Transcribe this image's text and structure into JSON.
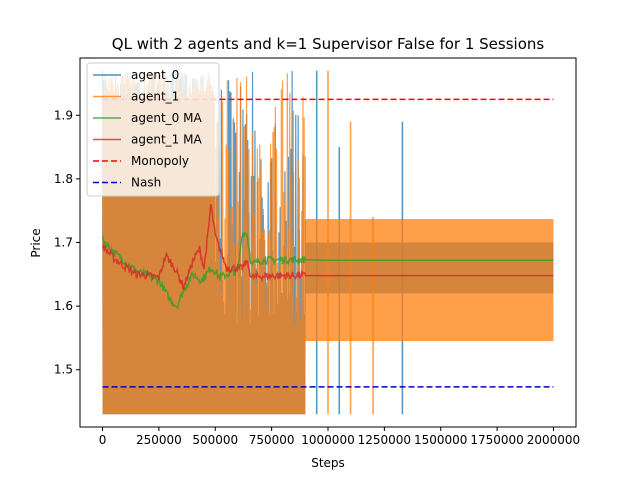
{
  "chart_data": {
    "type": "line",
    "title": "QL with 2 agents and k=1 Supervisor False for 1 Sessions",
    "xlabel": "Steps",
    "ylabel": "Price",
    "xlim": [
      -100000,
      2100000
    ],
    "ylim": [
      1.41,
      1.99
    ],
    "x_ticks": [
      0,
      250000,
      500000,
      750000,
      1000000,
      1250000,
      1500000,
      1750000,
      2000000
    ],
    "x_tick_labels": [
      "0",
      "250000",
      "500000",
      "750000",
      "1000000",
      "1250000",
      "1500000",
      "1750000",
      "2000000"
    ],
    "y_ticks": [
      1.5,
      1.6,
      1.7,
      1.8,
      1.9
    ],
    "y_tick_labels": [
      "1.5",
      "1.6",
      "1.7",
      "1.8",
      "1.9"
    ],
    "legend_position": "top-left",
    "grid": false,
    "series": [
      {
        "name": "agent_0",
        "color": "#1f77b4",
        "style": "raw",
        "early_band": {
          "x": [
            0,
            900000
          ],
          "y": [
            1.43,
            1.97
          ]
        },
        "late_band": {
          "x": [
            900000,
            2000000
          ],
          "y": [
            1.62,
            1.7
          ]
        },
        "spikes": [
          {
            "x": 950000,
            "y": [
              1.43,
              1.97
            ]
          },
          {
            "x": 1050000,
            "y": [
              1.43,
              1.85
            ]
          },
          {
            "x": 1330000,
            "y": [
              1.43,
              1.89
            ]
          }
        ]
      },
      {
        "name": "agent_1",
        "color": "#ff7f0e",
        "style": "raw",
        "early_band": {
          "x": [
            0,
            900000
          ],
          "y": [
            1.43,
            1.97
          ]
        },
        "late_band": {
          "x": [
            900000,
            2000000
          ],
          "y": [
            1.545,
            1.737
          ]
        },
        "spikes": [
          {
            "x": 1000000,
            "y": [
              1.43,
              1.97
            ]
          },
          {
            "x": 1100000,
            "y": [
              1.43,
              1.89
            ]
          },
          {
            "x": 1200000,
            "y": [
              1.43,
              1.74
            ]
          }
        ]
      },
      {
        "name": "agent_0 MA",
        "color": "#2ca02c",
        "style": "ma",
        "x": [
          0,
          50000,
          100000,
          150000,
          200000,
          250000,
          300000,
          330000,
          360000,
          400000,
          440000,
          460000,
          480000,
          500000,
          520000,
          550000,
          600000,
          620000,
          640000,
          660000,
          700000,
          800000,
          900000,
          1000000,
          1500000,
          2000000
        ],
        "y": [
          1.705,
          1.685,
          1.67,
          1.655,
          1.648,
          1.64,
          1.61,
          1.6,
          1.625,
          1.65,
          1.64,
          1.65,
          1.66,
          1.655,
          1.645,
          1.65,
          1.655,
          1.715,
          1.715,
          1.665,
          1.672,
          1.673,
          1.673,
          1.672,
          1.672,
          1.672
        ]
      },
      {
        "name": "agent_1 MA",
        "color": "#d62728",
        "style": "ma",
        "x": [
          0,
          50000,
          100000,
          150000,
          200000,
          250000,
          280000,
          320000,
          360000,
          400000,
          430000,
          450000,
          470000,
          480000,
          500000,
          550000,
          600000,
          620000,
          640000,
          660000,
          700000,
          800000,
          900000,
          1000000,
          1500000,
          2000000
        ],
        "y": [
          1.695,
          1.675,
          1.662,
          1.65,
          1.648,
          1.645,
          1.68,
          1.66,
          1.63,
          1.67,
          1.69,
          1.66,
          1.72,
          1.76,
          1.71,
          1.66,
          1.66,
          1.66,
          1.67,
          1.645,
          1.647,
          1.648,
          1.648,
          1.648,
          1.648,
          1.648
        ]
      },
      {
        "name": "Monopoly",
        "color": "#ff0000",
        "style": "dashed",
        "x": [
          0,
          2000000
        ],
        "y": [
          1.925,
          1.925
        ]
      },
      {
        "name": "Nash",
        "color": "#0000cc",
        "style": "dashed",
        "x": [
          0,
          2000000
        ],
        "y": [
          1.473,
          1.473
        ]
      }
    ]
  }
}
